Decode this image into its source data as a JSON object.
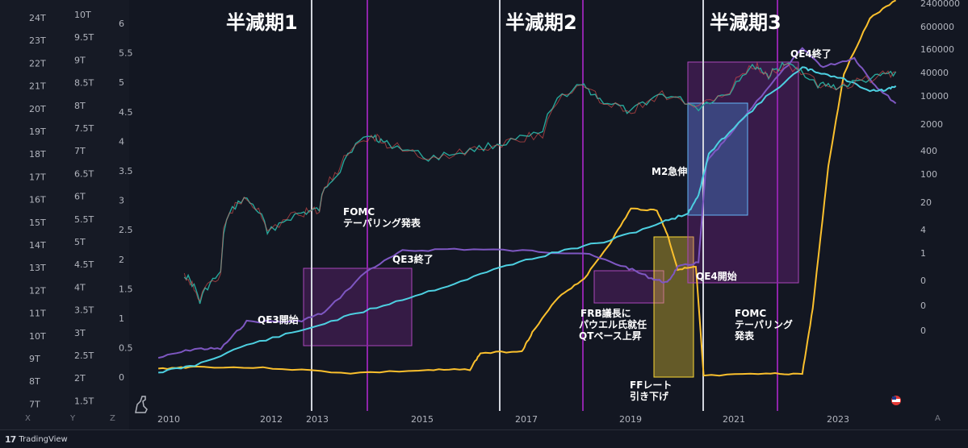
{
  "app": {
    "brand": "TradingView",
    "axis_buttons": [
      "X",
      "Y",
      "Z"
    ],
    "auto_button": "A"
  },
  "colors": {
    "background": "#131722",
    "btc": "#26a69a",
    "m2": "#4dd0e1",
    "fed_assets": "#7e57c2",
    "ffr": "#fbc02d",
    "halving_line": "#d1d4dc",
    "fomc_line": "#8e24aa"
  },
  "chart_data": {
    "type": "line",
    "x_ticks": [
      "2010",
      "2012",
      "2013",
      "2015",
      "2017",
      "2019",
      "2021",
      "2023"
    ],
    "left_axis_1": [
      "24T",
      "23T",
      "22T",
      "21T",
      "20T",
      "19T",
      "18T",
      "17T",
      "16T",
      "15T",
      "14T",
      "13T",
      "12T",
      "11T",
      "10T",
      "9T",
      "8T",
      "7T"
    ],
    "left_axis_2": [
      "10T",
      "9.5T",
      "9T",
      "8.5T",
      "8T",
      "7.5T",
      "7T",
      "6.5T",
      "6T",
      "5.5T",
      "5T",
      "4.5T",
      "4T",
      "3.5T",
      "3T",
      "2.5T",
      "2T",
      "1.5T"
    ],
    "left_axis_3": [
      "6",
      "5.5",
      "5",
      "4.5",
      "4",
      "3.5",
      "3",
      "2.5",
      "2",
      "1.5",
      "1",
      "0.5",
      "0"
    ],
    "right_axis": [
      "2400000",
      "600000",
      "160000",
      "40000",
      "10000",
      "2000",
      "400",
      "100",
      "20",
      "4",
      "1",
      "0",
      "0",
      "0",
      "0"
    ],
    "series": [
      {
        "name": "BTC",
        "values": [
          [
            2010.3,
            0.3
          ],
          [
            2010.6,
            0.06
          ],
          [
            2011.0,
            0.3
          ],
          [
            2011.45,
            25
          ],
          [
            2011.9,
            3
          ],
          [
            2012.5,
            10
          ],
          [
            2012.9,
            13
          ],
          [
            2013.3,
            120
          ],
          [
            2013.9,
            1000
          ],
          [
            2014.2,
            600
          ],
          [
            2015.0,
            250
          ],
          [
            2015.8,
            400
          ],
          [
            2016.5,
            650
          ],
          [
            2017.2,
            1100
          ],
          [
            2017.95,
            18000
          ],
          [
            2018.3,
            8000
          ],
          [
            2018.9,
            3700
          ],
          [
            2019.5,
            11000
          ],
          [
            2020.2,
            5000
          ],
          [
            2020.8,
            12000
          ],
          [
            2021.3,
            58000
          ],
          [
            2021.55,
            32000
          ],
          [
            2021.85,
            65000
          ],
          [
            2022.5,
            20000
          ],
          [
            2022.9,
            16500
          ],
          [
            2023.6,
            29000
          ],
          [
            2024.0,
            42000
          ]
        ]
      },
      {
        "name": "M2",
        "values": [
          [
            2009.8,
            8.4
          ],
          [
            2010.5,
            8.7
          ],
          [
            2011.5,
            9.6
          ],
          [
            2012.5,
            10.2
          ],
          [
            2013.5,
            10.9
          ],
          [
            2014.5,
            11.6
          ],
          [
            2015.5,
            12.3
          ],
          [
            2016.5,
            13.1
          ],
          [
            2017.5,
            13.7
          ],
          [
            2018.5,
            14.2
          ],
          [
            2019.5,
            15.0
          ],
          [
            2020.0,
            15.4
          ],
          [
            2020.2,
            16.2
          ],
          [
            2020.4,
            18.0
          ],
          [
            2020.8,
            19.0
          ],
          [
            2021.5,
            20.5
          ],
          [
            2022.2,
            21.8
          ],
          [
            2022.5,
            21.6
          ],
          [
            2023.0,
            21.3
          ],
          [
            2023.5,
            20.8
          ],
          [
            2023.8,
            20.8
          ],
          [
            2024.0,
            21.0
          ]
        ]
      },
      {
        "name": "FED",
        "values": [
          [
            2009.8,
            2.1
          ],
          [
            2010.5,
            2.3
          ],
          [
            2011.0,
            2.3
          ],
          [
            2011.5,
            2.9
          ],
          [
            2012.5,
            2.9
          ],
          [
            2013.0,
            3.1
          ],
          [
            2013.8,
            4.0
          ],
          [
            2014.5,
            4.45
          ],
          [
            2015.5,
            4.5
          ],
          [
            2017.0,
            4.45
          ],
          [
            2018.0,
            4.4
          ],
          [
            2018.8,
            4.1
          ],
          [
            2019.3,
            3.85
          ],
          [
            2019.6,
            3.75
          ],
          [
            2019.8,
            4.1
          ],
          [
            2020.2,
            4.2
          ],
          [
            2020.35,
            6.4
          ],
          [
            2020.8,
            7.0
          ],
          [
            2021.5,
            8.0
          ],
          [
            2022.2,
            8.9
          ],
          [
            2022.6,
            8.5
          ],
          [
            2023.2,
            8.7
          ],
          [
            2023.6,
            8.1
          ],
          [
            2024.0,
            7.7
          ]
        ]
      },
      {
        "name": "FFR",
        "values": [
          [
            2009.8,
            0.15
          ],
          [
            2010.5,
            0.18
          ],
          [
            2012.0,
            0.16
          ],
          [
            2013.5,
            0.09
          ],
          [
            2015.0,
            0.13
          ],
          [
            2015.8,
            0.14
          ],
          [
            2016.0,
            0.37
          ],
          [
            2016.8,
            0.4
          ],
          [
            2017.0,
            0.66
          ],
          [
            2017.5,
            1.16
          ],
          [
            2018.0,
            1.42
          ],
          [
            2018.5,
            1.92
          ],
          [
            2018.9,
            2.4
          ],
          [
            2019.4,
            2.38
          ],
          [
            2019.6,
            2.04
          ],
          [
            2019.8,
            1.55
          ],
          [
            2020.15,
            1.58
          ],
          [
            2020.3,
            0.05
          ],
          [
            2021.5,
            0.08
          ],
          [
            2022.2,
            0.08
          ],
          [
            2022.4,
            1.0
          ],
          [
            2022.7,
            3.0
          ],
          [
            2023.0,
            4.3
          ],
          [
            2023.5,
            5.08
          ],
          [
            2024.0,
            5.33
          ]
        ]
      }
    ],
    "annotations": {
      "halving1": "半減期1",
      "halving2": "半減期2",
      "halving3": "半減期3",
      "fomc_tapering_1_line1": "FOMC",
      "fomc_tapering_1_line2": "テーパリング発表",
      "qe3_start": "QE3開始",
      "qe3_end": "QE3終了",
      "frb_line1": "FRB議長に",
      "frb_line2": "パウエル氏就任",
      "frb_line3": "QTペース上昇",
      "ffr_cut_line1": "FFレート",
      "ffr_cut_line2": "引き下げ",
      "qe4_start": "QE4開始",
      "m2_surge": "M2急伸",
      "qe4_end": "QE4終了",
      "fomc_tapering_2_line1": "FOMC",
      "fomc_tapering_2_line2": "テーパリング",
      "fomc_tapering_2_line3": "発表"
    }
  }
}
